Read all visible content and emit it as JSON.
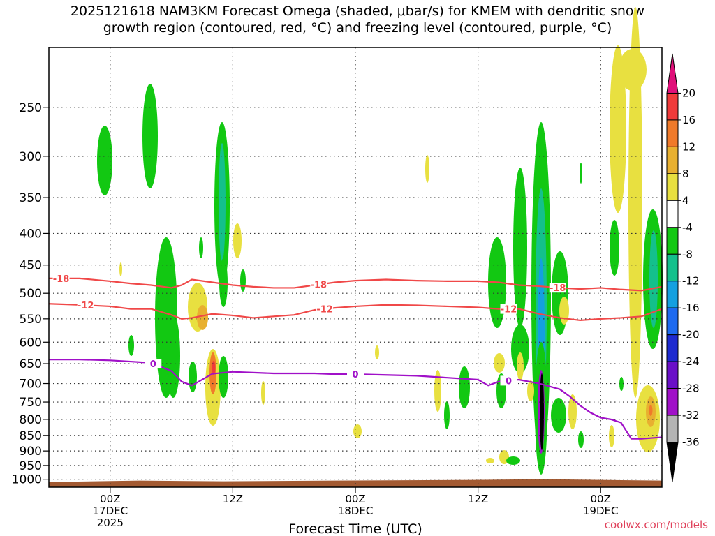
{
  "title_line1": "2025121618 NAM3KM Forecast Omega (shaded, μbar/s) for KMEM with dendritic snow",
  "title_line2": "growth region (contoured, red, °C) and freezing level (contoured, purple, °C)",
  "credit": "coolwx.com/models",
  "chart_data": {
    "type": "heatmap",
    "title": "2025121618 NAM3KM Forecast Omega (shaded, μbar/s) for KMEM with dendritic snow growth region (contoured, red, °C) and freezing level (contoured, purple, °C)",
    "xlabel": "Forecast Time (UTC)",
    "ylabel": "",
    "x_unit": "forecast hour",
    "xlim": [
      0,
      60
    ],
    "y_scale": "log",
    "ylim_hPa": [
      1030,
      200
    ],
    "x_ticks": [
      {
        "x": 6,
        "label": [
          "00Z",
          "17DEC",
          "2025"
        ]
      },
      {
        "x": 18,
        "label": [
          "12Z"
        ]
      },
      {
        "x": 30,
        "label": [
          "00Z",
          "18DEC"
        ]
      },
      {
        "x": 42,
        "label": [
          "12Z"
        ]
      },
      {
        "x": 54,
        "label": [
          "00Z",
          "19DEC"
        ]
      }
    ],
    "y_ticks": [
      250,
      300,
      350,
      400,
      450,
      500,
      550,
      600,
      650,
      700,
      750,
      800,
      850,
      900,
      950,
      1000
    ],
    "grid": true,
    "colorbar": {
      "labels": [
        "20",
        "16",
        "12",
        "8",
        "4",
        "-4",
        "-8",
        "-12",
        "-16",
        "-20",
        "-24",
        "-28",
        "-32",
        "-36"
      ],
      "colors": [
        "#e0107a",
        "#f03a3a",
        "#f07a2a",
        "#e8b030",
        "#e8e040",
        "#ffffff",
        "#12c812",
        "#14c08c",
        "#14a0e0",
        "#1e6af0",
        "#1e2ad0",
        "#6a10c8",
        "#a010c8",
        "#b4b4b4",
        "#000000"
      ]
    },
    "series": [
      {
        "name": "-18",
        "color": "#f04848",
        "x": [
          0,
          3,
          6,
          8,
          10,
          12,
          13,
          14,
          16,
          18,
          20,
          22,
          24,
          26,
          28,
          30,
          33,
          36,
          39,
          42,
          44,
          46,
          48,
          50,
          52,
          54,
          56,
          58,
          60
        ],
        "y": [
          473,
          473,
          478,
          482,
          485,
          490,
          485,
          475,
          480,
          485,
          488,
          490,
          490,
          485,
          480,
          477,
          475,
          477,
          478,
          478,
          480,
          485,
          487,
          490,
          492,
          490,
          493,
          495,
          488
        ]
      },
      {
        "name": "-12",
        "color": "#f04848",
        "x": [
          0,
          3,
          6,
          8,
          10,
          12,
          13,
          14,
          16,
          18,
          20,
          22,
          24,
          26,
          28,
          30,
          33,
          36,
          39,
          42,
          44,
          46,
          48,
          50,
          52,
          54,
          56,
          58,
          60
        ],
        "y": [
          520,
          522,
          525,
          530,
          530,
          542,
          550,
          548,
          540,
          543,
          548,
          545,
          542,
          532,
          528,
          525,
          522,
          523,
          525,
          527,
          530,
          530,
          540,
          548,
          553,
          550,
          548,
          545,
          530
        ]
      },
      {
        "name": "0",
        "color": "#a010c8",
        "x": [
          0,
          3,
          6,
          8,
          10,
          12,
          13,
          14,
          16,
          18,
          20,
          22,
          24,
          26,
          28,
          30,
          33,
          36,
          39,
          42,
          43,
          44,
          46,
          48,
          50,
          51,
          52,
          53,
          54,
          55,
          56,
          57,
          58,
          60
        ],
        "y": [
          640,
          640,
          642,
          645,
          648,
          668,
          695,
          705,
          675,
          670,
          672,
          674,
          674,
          674,
          676,
          676,
          678,
          680,
          685,
          690,
          705,
          695,
          690,
          700,
          715,
          735,
          760,
          780,
          795,
          800,
          810,
          860,
          860,
          855
        ]
      }
    ]
  }
}
